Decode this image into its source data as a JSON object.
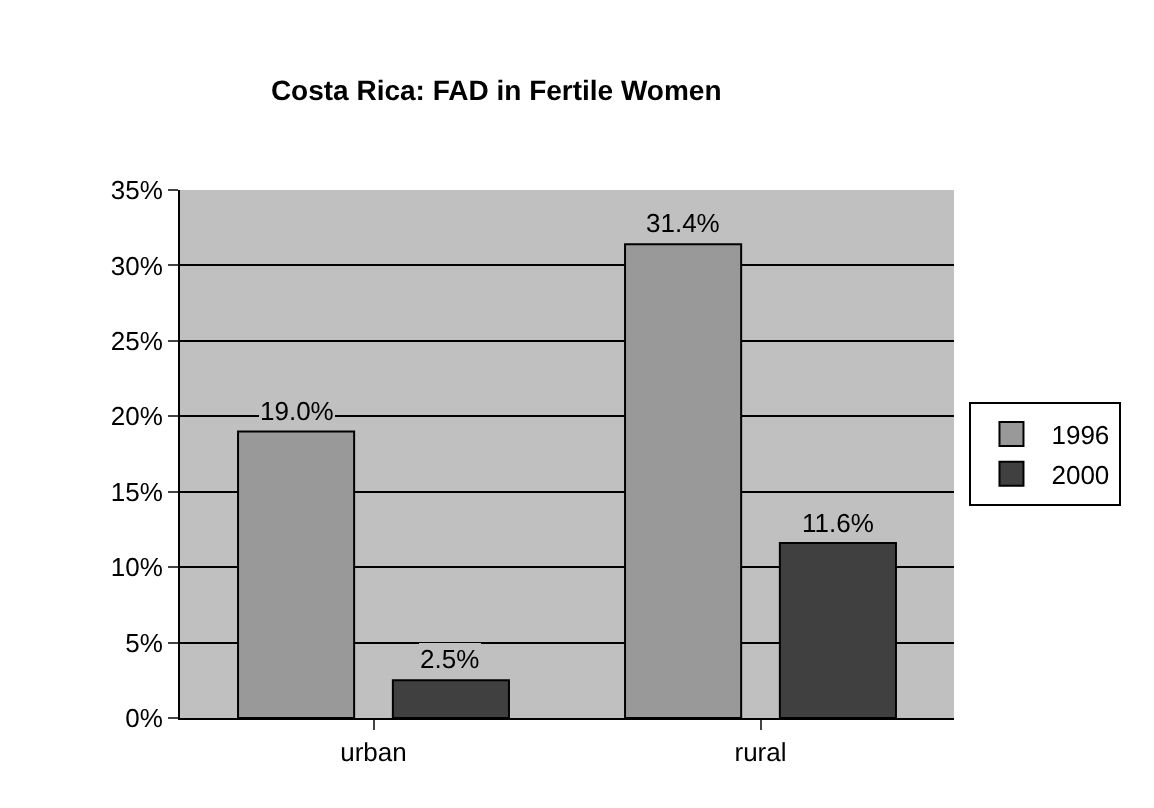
{
  "chart_data": {
    "type": "bar",
    "title": "Costa Rica: FAD in Fertile Women",
    "categories": [
      "urban",
      "rural"
    ],
    "series": [
      {
        "name": "1996",
        "color": "#999999",
        "values": [
          19.0,
          31.4
        ],
        "value_labels": [
          "19.0%",
          "31.4%"
        ]
      },
      {
        "name": "2000",
        "color": "#404040",
        "values": [
          2.5,
          11.6
        ],
        "value_labels": [
          "2.5%",
          "11.6%"
        ]
      }
    ],
    "ylim": [
      0,
      35
    ],
    "yticks": [
      {
        "value": 0,
        "label": "0%"
      },
      {
        "value": 5,
        "label": "5%"
      },
      {
        "value": 10,
        "label": "10%"
      },
      {
        "value": 15,
        "label": "15%"
      },
      {
        "value": 20,
        "label": "20%"
      },
      {
        "value": 25,
        "label": "25%"
      },
      {
        "value": 30,
        "label": "30%"
      },
      {
        "value": 35,
        "label": "35%"
      }
    ],
    "grid": "y",
    "legend": "right"
  }
}
